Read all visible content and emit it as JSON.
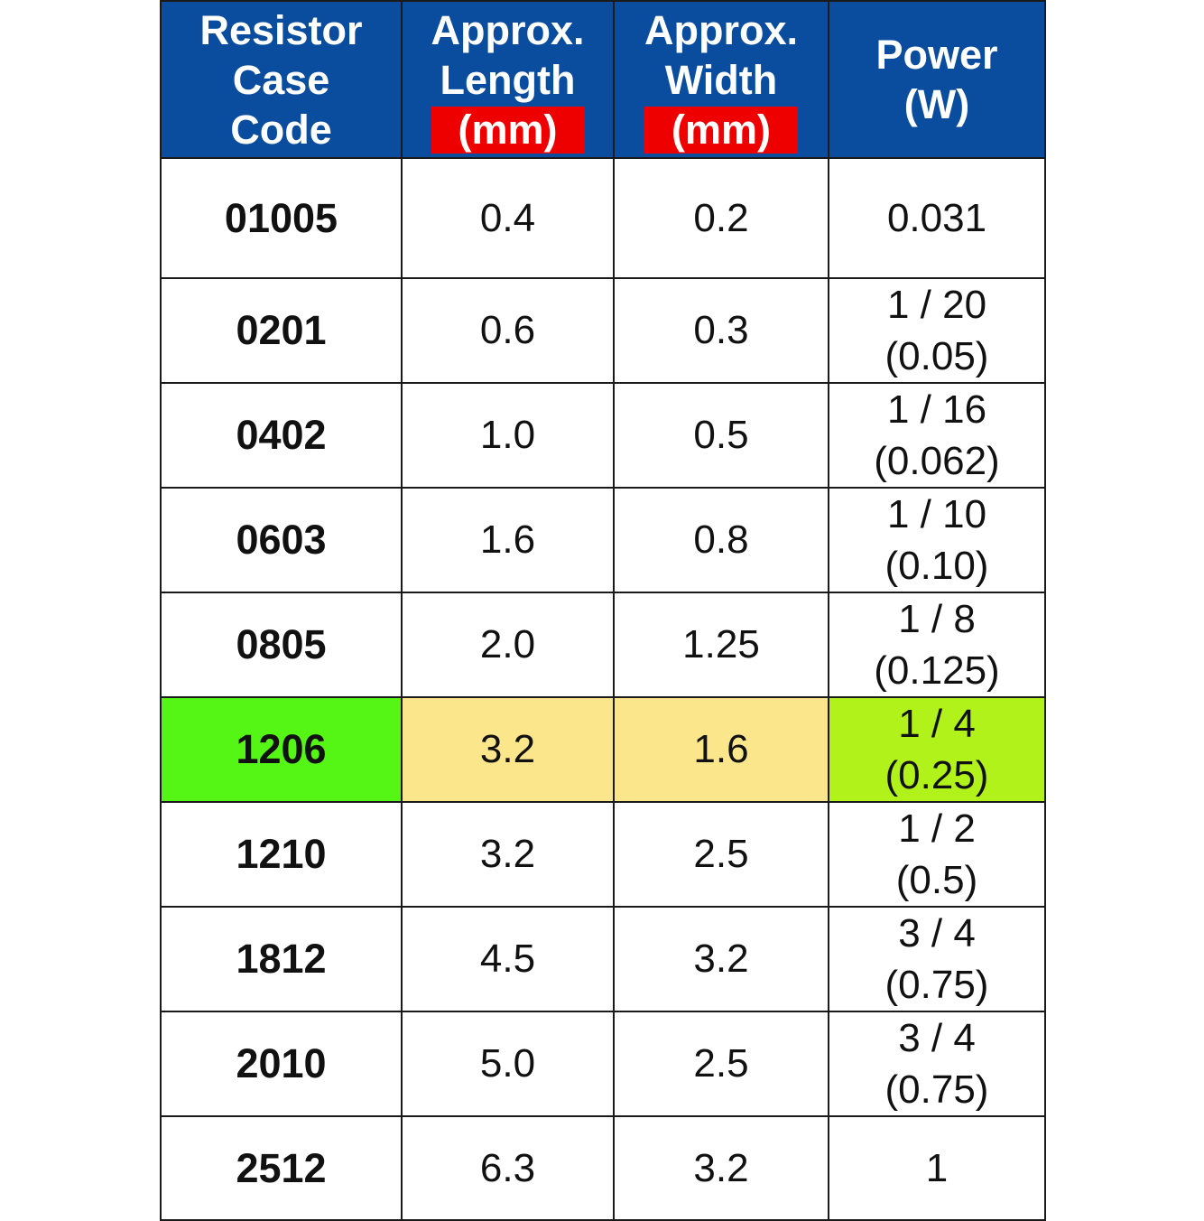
{
  "table": {
    "headers": {
      "code": [
        "Resistor",
        "Case",
        "Code"
      ],
      "length": {
        "lines": [
          "Approx.",
          "Length"
        ],
        "unit": "(mm)"
      },
      "width": {
        "lines": [
          "Approx.",
          "Width"
        ],
        "unit": "(mm)"
      },
      "power": [
        "Power",
        "(W)"
      ]
    },
    "rows": [
      {
        "code": "01005",
        "length": "0.4",
        "width": "0.2",
        "power": [
          "0.031"
        ]
      },
      {
        "code": "0201",
        "length": "0.6",
        "width": "0.3",
        "power": [
          "1 / 20",
          "(0.05)"
        ]
      },
      {
        "code": "0402",
        "length": "1.0",
        "width": "0.5",
        "power": [
          "1 / 16",
          "(0.062)"
        ]
      },
      {
        "code": "0603",
        "length": "1.6",
        "width": "0.8",
        "power": [
          "1 / 10",
          "(0.10)"
        ]
      },
      {
        "code": "0805",
        "length": "2.0",
        "width": "1.25",
        "power": [
          "1 / 8",
          "(0.125)"
        ]
      },
      {
        "code": "1206",
        "length": "3.2",
        "width": "1.6",
        "power": [
          "1 / 4",
          "(0.25)"
        ]
      },
      {
        "code": "1210",
        "length": "3.2",
        "width": "2.5",
        "power": [
          "1 / 2",
          "(0.5)"
        ]
      },
      {
        "code": "1812",
        "length": "4.5",
        "width": "3.2",
        "power": [
          "3 / 4",
          "(0.75)"
        ]
      },
      {
        "code": "2010",
        "length": "5.0",
        "width": "2.5",
        "power": [
          "3 / 4",
          "(0.75)"
        ]
      },
      {
        "code": "2512",
        "length": "6.3",
        "width": "3.2",
        "power": [
          "1"
        ]
      }
    ],
    "highlight_row_code": "1206"
  },
  "colors": {
    "header_bg": "#0a4d9e",
    "unit_badge_bg": "#ee0000",
    "highlight_code_bg": "#55f516",
    "highlight_dim_bg": "#fbe68c",
    "highlight_power_bg": "#b2f21b"
  }
}
